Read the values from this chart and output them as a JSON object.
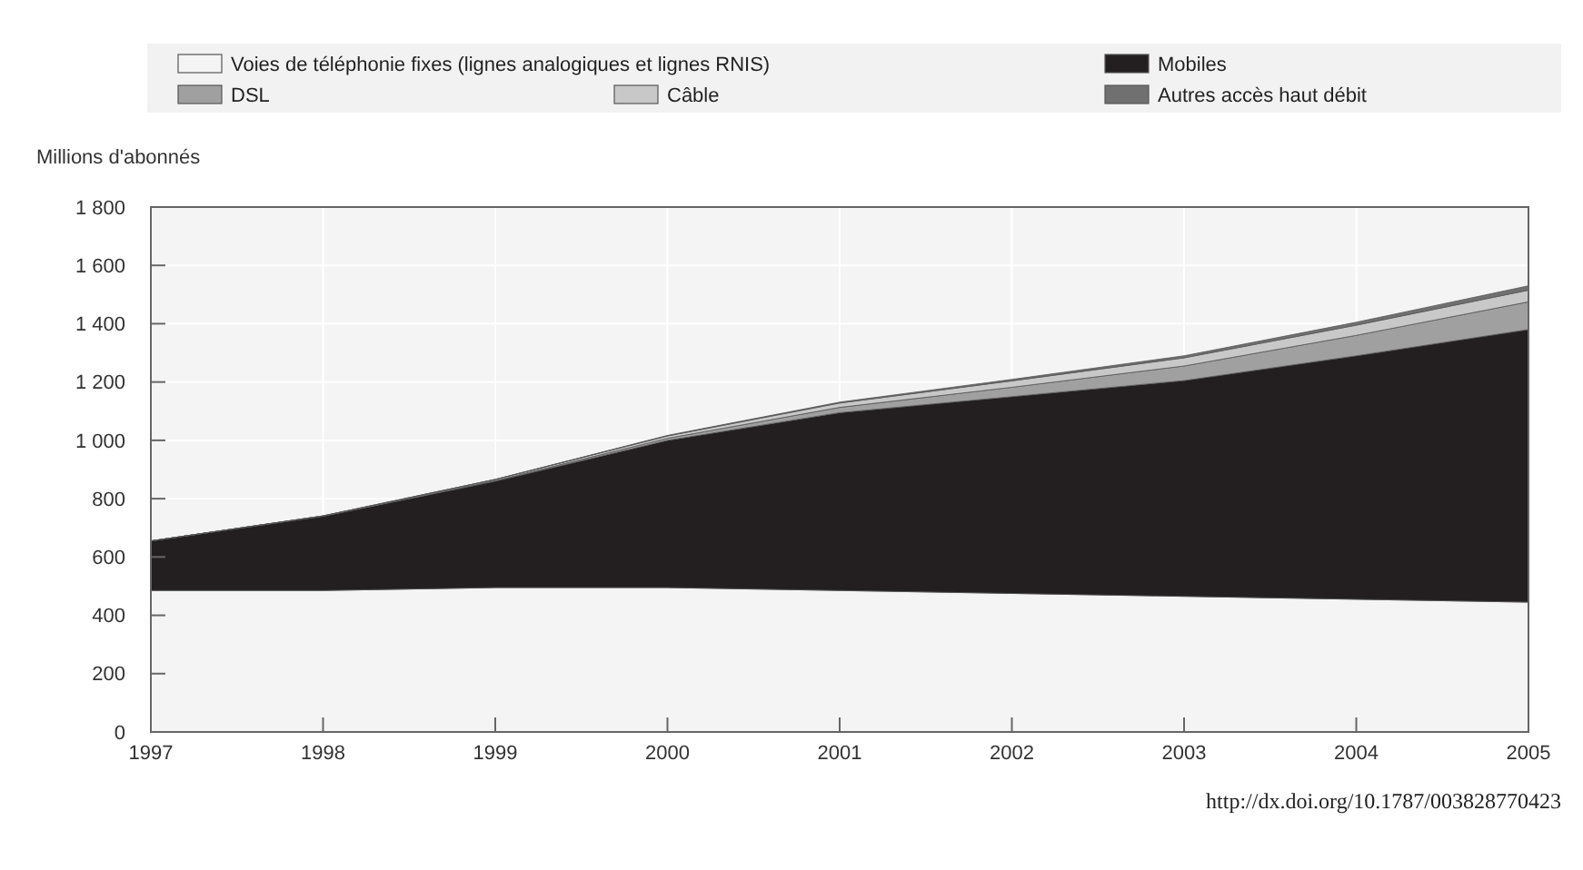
{
  "chart_data": {
    "type": "area",
    "stacked": true,
    "ylabel": "Millions d'abonnés",
    "x": [
      1997,
      1998,
      1999,
      2000,
      2001,
      2002,
      2003,
      2004,
      2005
    ],
    "xlim": [
      1997,
      2005
    ],
    "xticks": [
      1997,
      1998,
      1999,
      2000,
      2001,
      2002,
      2003,
      2004,
      2005
    ],
    "ylim": [
      0,
      1800
    ],
    "yticks": [
      0,
      200,
      400,
      600,
      800,
      {
        "value": 1000,
        "label": "1 000"
      },
      {
        "value": 1200,
        "label": "1 200"
      },
      {
        "value": 1400,
        "label": "1 400"
      },
      {
        "value": 1600,
        "label": "1 600"
      },
      {
        "value": 1800,
        "label": "1 800"
      }
    ],
    "grid": true,
    "legend": "top",
    "series": [
      {
        "name": "Voies de téléphonie fixes (lignes analogiques et lignes RNIS)",
        "color": "#f4f4f4",
        "values": [
          485,
          485,
          495,
          495,
          485,
          475,
          465,
          455,
          445
        ]
      },
      {
        "name": "Mobiles",
        "color": "#231f20",
        "values": [
          170,
          255,
          365,
          505,
          610,
          675,
          740,
          835,
          935
        ]
      },
      {
        "name": "DSL",
        "color": "#a0a0a0",
        "values": [
          0,
          0,
          2,
          7,
          18,
          32,
          50,
          70,
          95
        ]
      },
      {
        "name": "Câble",
        "color": "#c8c8c8",
        "values": [
          0,
          1,
          4,
          8,
          15,
          22,
          28,
          35,
          40
        ]
      },
      {
        "name": "Autres accès haut débit",
        "color": "#707070",
        "values": [
          0,
          0,
          0,
          2,
          3,
          5,
          7,
          10,
          15
        ]
      }
    ],
    "annotations": [
      "http://dx.doi.org/10.1787/003828770423"
    ]
  }
}
